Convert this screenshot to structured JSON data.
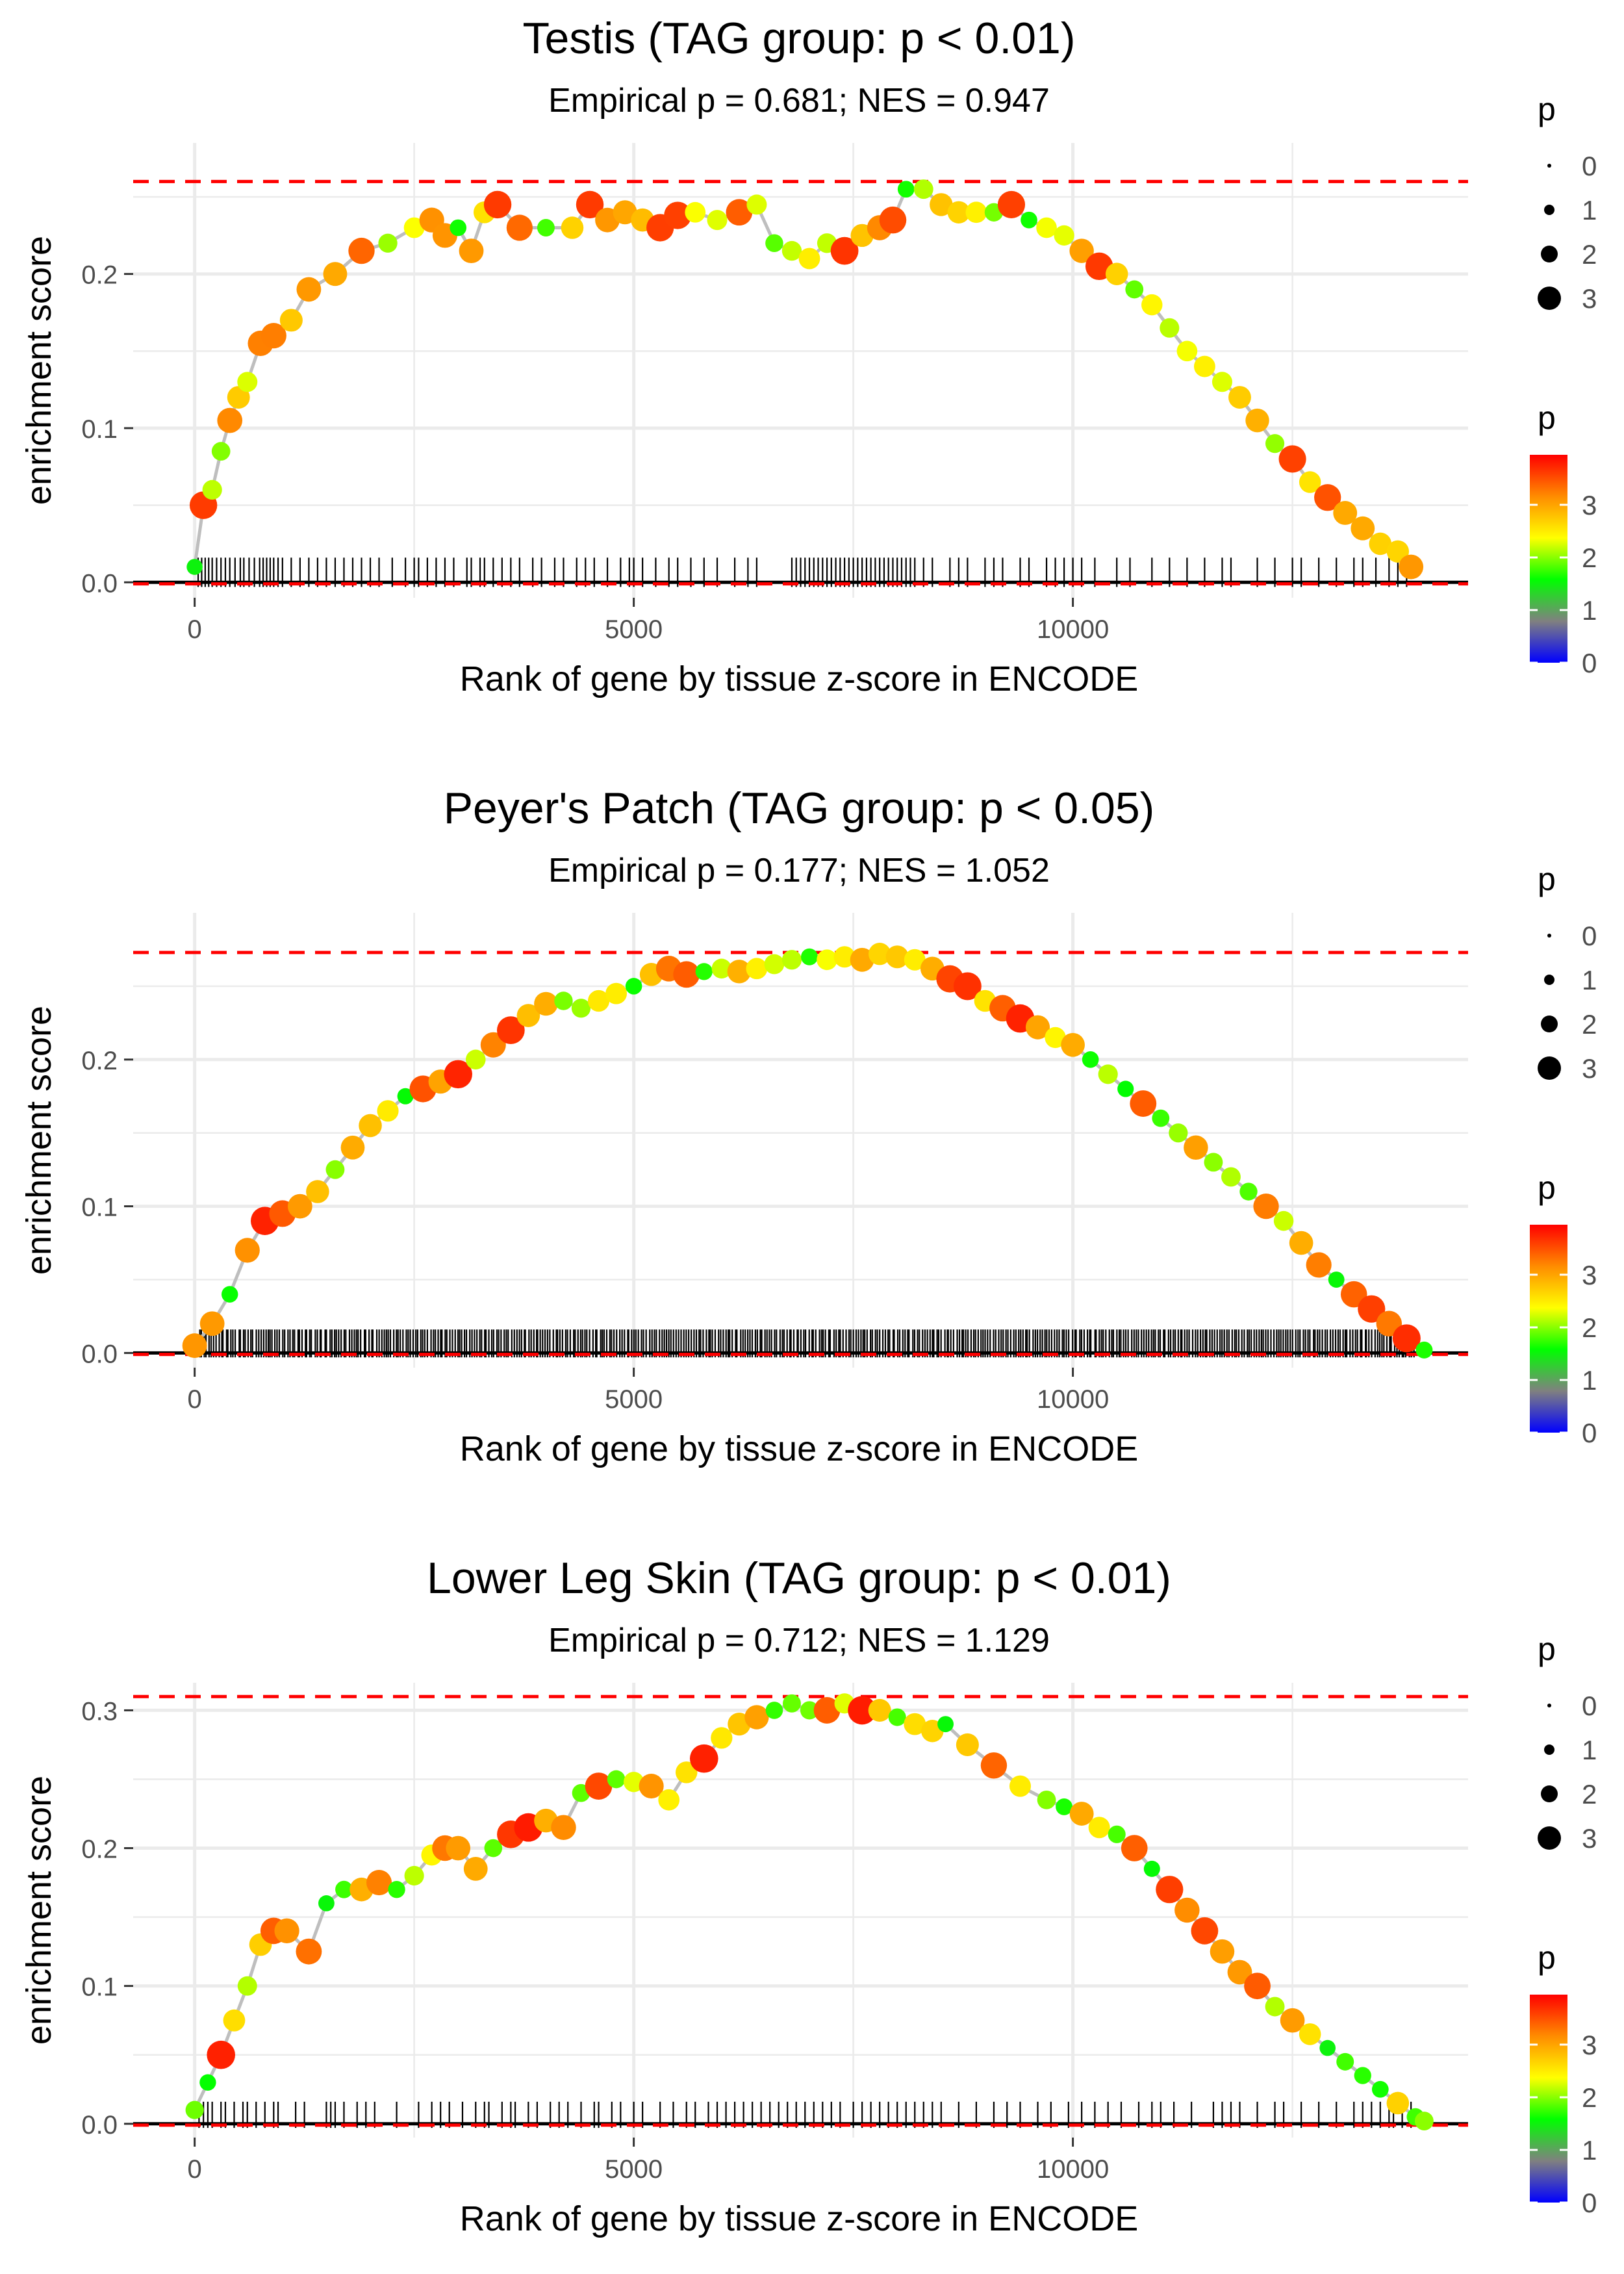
{
  "colors": {
    "threshold": "#ff0000",
    "grid": "#ebebeb",
    "line": "#bebebe",
    "zero_line": "#000000",
    "text": "#000000",
    "tick_text": "#4d4d4d",
    "scale_stops": [
      "#0000ff",
      "#808080",
      "#00ff00",
      "#ffff00",
      "#ff8c00",
      "#ff0000"
    ]
  },
  "chart_data": [
    {
      "type": "line",
      "title": "Testis (TAG group: p < 0.01)",
      "subtitle": "Empirical p = 0.681; NES = 0.947",
      "xlabel": "Rank of gene by tissue z-score in ENCODE",
      "ylabel": "enrichment score",
      "xlim": [
        -700,
        14500
      ],
      "ylim": [
        -0.01,
        0.285
      ],
      "xticks": [
        0,
        5000,
        10000
      ],
      "xtick_labels": [
        "0",
        "5000",
        "10000"
      ],
      "yticks": [
        0.0,
        0.1,
        0.2
      ],
      "ytick_labels": [
        "0.0",
        "0.1",
        "0.2"
      ],
      "threshold_lines": [
        0.26,
        -0.001
      ],
      "x": [
        0,
        100,
        200,
        300,
        400,
        500,
        600,
        750,
        900,
        1100,
        1300,
        1600,
        1900,
        2200,
        2500,
        2700,
        2850,
        3000,
        3150,
        3300,
        3450,
        3700,
        4000,
        4300,
        4500,
        4700,
        4900,
        5100,
        5300,
        5500,
        5700,
        5950,
        6200,
        6400,
        6600,
        6800,
        7000,
        7200,
        7400,
        7600,
        7800,
        7950,
        8100,
        8300,
        8500,
        8700,
        8900,
        9100,
        9300,
        9500,
        9700,
        9900,
        10100,
        10300,
        10500,
        10700,
        10900,
        11100,
        11300,
        11500,
        11700,
        11900,
        12100,
        12300,
        12500,
        12700,
        12900,
        13100,
        13300,
        13500,
        13700,
        13850
      ],
      "y": [
        0.01,
        0.05,
        0.06,
        0.085,
        0.105,
        0.12,
        0.13,
        0.155,
        0.16,
        0.17,
        0.19,
        0.2,
        0.215,
        0.22,
        0.23,
        0.235,
        0.225,
        0.23,
        0.215,
        0.24,
        0.245,
        0.23,
        0.23,
        0.23,
        0.245,
        0.235,
        0.24,
        0.235,
        0.23,
        0.238,
        0.24,
        0.235,
        0.24,
        0.245,
        0.22,
        0.215,
        0.21,
        0.22,
        0.215,
        0.225,
        0.23,
        0.235,
        0.255,
        0.255,
        0.245,
        0.24,
        0.24,
        0.24,
        0.245,
        0.235,
        0.23,
        0.225,
        0.215,
        0.205,
        0.2,
        0.19,
        0.18,
        0.165,
        0.15,
        0.14,
        0.13,
        0.12,
        0.105,
        0.09,
        0.08,
        0.065,
        0.055,
        0.045,
        0.035,
        0.025,
        0.02,
        0.01
      ],
      "rug": [
        40,
        80,
        120,
        160,
        200,
        250,
        300,
        350,
        400,
        460,
        520,
        560,
        620,
        680,
        740,
        780,
        820,
        860,
        900,
        950,
        1000,
        1100,
        1200,
        1300,
        1400,
        1500,
        1600,
        1700,
        1800,
        1900,
        2000,
        2100,
        2250,
        2400,
        2500,
        2550,
        2650,
        2750,
        2850,
        2950,
        3100,
        3150,
        3250,
        3300,
        3400,
        3500,
        3600,
        3700,
        3850,
        3950,
        4100,
        4200,
        4350,
        4450,
        4550,
        4700,
        4850,
        4950,
        5000,
        5100,
        5250,
        5400,
        5500,
        5650,
        5800,
        5950,
        6150,
        6300,
        6400,
        6800,
        6850,
        6900,
        6950,
        7000,
        7050,
        7100,
        7150,
        7200,
        7250,
        7300,
        7350,
        7400,
        7450,
        7500,
        7550,
        7600,
        7650,
        7700,
        7750,
        7800,
        7850,
        7900,
        7950,
        8000,
        8050,
        8100,
        8150,
        8200,
        8300,
        8400,
        8600,
        8700,
        8800,
        9000,
        9100,
        9200,
        9400,
        9500,
        9700,
        9800,
        9900,
        10000,
        10100,
        10250,
        10500,
        10650,
        10900,
        11100,
        11300,
        11500,
        11700,
        11800,
        12100,
        12300,
        12500,
        12600,
        12800,
        13000,
        13200,
        13300,
        13450,
        13600,
        13700,
        13800
      ],
      "size_legend": {
        "title": "p",
        "labels": [
          "0",
          "1",
          "2",
          "3"
        ]
      },
      "color_legend": {
        "title": "p",
        "labels": [
          "3",
          "2",
          "1",
          "0"
        ],
        "values": [
          3,
          2,
          1,
          0
        ],
        "max": 3.95
      }
    },
    {
      "type": "line",
      "title": "Peyer's Patch (TAG group: p < 0.05)",
      "subtitle": "Empirical p = 0.177; NES = 1.052",
      "xlabel": "Rank of gene by tissue z-score in ENCODE",
      "ylabel": "enrichment score",
      "xlim": [
        -700,
        14500
      ],
      "ylim": [
        -0.01,
        0.3
      ],
      "xticks": [
        0,
        5000,
        10000
      ],
      "xtick_labels": [
        "0",
        "5000",
        "10000"
      ],
      "yticks": [
        0.0,
        0.1,
        0.2
      ],
      "ytick_labels": [
        "0.0",
        "0.1",
        "0.2"
      ],
      "threshold_lines": [
        0.273,
        -0.001
      ],
      "x": [
        0,
        200,
        400,
        600,
        800,
        1000,
        1200,
        1400,
        1600,
        1800,
        2000,
        2200,
        2400,
        2600,
        2800,
        3000,
        3200,
        3400,
        3600,
        3800,
        4000,
        4200,
        4400,
        4600,
        4800,
        5000,
        5200,
        5400,
        5600,
        5800,
        6000,
        6200,
        6400,
        6600,
        6800,
        7000,
        7200,
        7400,
        7600,
        7800,
        8000,
        8200,
        8400,
        8600,
        8800,
        9000,
        9200,
        9400,
        9600,
        9800,
        10000,
        10200,
        10400,
        10600,
        10800,
        11000,
        11200,
        11400,
        11600,
        11800,
        12000,
        12200,
        12400,
        12600,
        12800,
        13000,
        13200,
        13400,
        13600,
        13800,
        14000
      ],
      "y": [
        0.005,
        0.02,
        0.04,
        0.07,
        0.09,
        0.095,
        0.1,
        0.11,
        0.125,
        0.14,
        0.155,
        0.165,
        0.175,
        0.18,
        0.185,
        0.19,
        0.2,
        0.21,
        0.22,
        0.23,
        0.238,
        0.24,
        0.235,
        0.24,
        0.245,
        0.25,
        0.258,
        0.262,
        0.258,
        0.26,
        0.262,
        0.26,
        0.262,
        0.265,
        0.268,
        0.27,
        0.268,
        0.27,
        0.268,
        0.272,
        0.27,
        0.268,
        0.262,
        0.255,
        0.25,
        0.24,
        0.235,
        0.228,
        0.222,
        0.215,
        0.21,
        0.2,
        0.19,
        0.18,
        0.17,
        0.16,
        0.15,
        0.14,
        0.13,
        0.12,
        0.11,
        0.1,
        0.09,
        0.075,
        0.06,
        0.05,
        0.04,
        0.03,
        0.02,
        0.01,
        0.002
      ],
      "rug": [],
      "rug_dense": {
        "start": 50,
        "end": 13900,
        "step": 28
      },
      "size_legend": {
        "title": "p",
        "labels": [
          "0",
          "1",
          "2",
          "3"
        ]
      },
      "color_legend": {
        "title": "p",
        "labels": [
          "3",
          "2",
          "1",
          "0"
        ],
        "values": [
          3,
          2,
          1,
          0
        ],
        "max": 3.95
      }
    },
    {
      "type": "line",
      "title": "Lower Leg Skin (TAG group: p < 0.01)",
      "subtitle": "Empirical p = 0.712; NES = 1.129",
      "xlabel": "Rank of gene by tissue z-score in ENCODE",
      "ylabel": "enrichment score",
      "xlim": [
        -700,
        14500
      ],
      "ylim": [
        -0.01,
        0.32
      ],
      "xticks": [
        0,
        5000,
        10000
      ],
      "xtick_labels": [
        "0",
        "5000",
        "10000"
      ],
      "yticks": [
        0.0,
        0.1,
        0.2,
        0.3
      ],
      "ytick_labels": [
        "0.0",
        "0.1",
        "0.2",
        "0.3"
      ],
      "threshold_lines": [
        0.31,
        -0.001
      ],
      "x": [
        0,
        150,
        300,
        450,
        600,
        750,
        900,
        1050,
        1300,
        1500,
        1700,
        1900,
        2100,
        2300,
        2500,
        2700,
        2850,
        3000,
        3200,
        3400,
        3600,
        3800,
        4000,
        4200,
        4400,
        4600,
        4800,
        5000,
        5200,
        5400,
        5600,
        5800,
        6000,
        6200,
        6400,
        6600,
        6800,
        7000,
        7200,
        7400,
        7600,
        7800,
        8000,
        8200,
        8400,
        8550,
        8800,
        9100,
        9400,
        9700,
        9900,
        10100,
        10300,
        10500,
        10700,
        10900,
        11100,
        11300,
        11500,
        11700,
        11900,
        12100,
        12300,
        12500,
        12700,
        12900,
        13100,
        13300,
        13500,
        13700,
        13900,
        14000
      ],
      "y": [
        0.01,
        0.03,
        0.05,
        0.075,
        0.1,
        0.13,
        0.14,
        0.14,
        0.125,
        0.16,
        0.17,
        0.17,
        0.175,
        0.17,
        0.18,
        0.195,
        0.2,
        0.2,
        0.185,
        0.2,
        0.21,
        0.215,
        0.22,
        0.215,
        0.24,
        0.245,
        0.25,
        0.248,
        0.245,
        0.235,
        0.255,
        0.265,
        0.28,
        0.29,
        0.295,
        0.3,
        0.305,
        0.3,
        0.3,
        0.305,
        0.3,
        0.3,
        0.295,
        0.29,
        0.285,
        0.29,
        0.275,
        0.26,
        0.245,
        0.235,
        0.23,
        0.225,
        0.215,
        0.21,
        0.2,
        0.185,
        0.17,
        0.155,
        0.14,
        0.125,
        0.11,
        0.1,
        0.085,
        0.075,
        0.065,
        0.055,
        0.045,
        0.035,
        0.025,
        0.015,
        0.005,
        0.002
      ],
      "rug": [
        50,
        100,
        150,
        200,
        300,
        350,
        450,
        550,
        600,
        700,
        800,
        900,
        950,
        1150,
        1250,
        1500,
        1550,
        1600,
        1700,
        1850,
        1950,
        2050,
        2300,
        2550,
        2700,
        2800,
        2900,
        3050,
        3200,
        3300,
        3350,
        3500,
        3600,
        3650,
        3800,
        3900,
        4050,
        4150,
        4250,
        4400,
        4550,
        4600,
        4750,
        4850,
        5000,
        5100,
        5300,
        5450,
        5600,
        5700,
        5850,
        5950,
        6050,
        6150,
        6250,
        6350,
        6450,
        6550,
        6650,
        6750,
        6850,
        6950,
        7050,
        7150,
        7250,
        7350,
        7500,
        7600,
        7700,
        7800,
        7900,
        8000,
        8100,
        8200,
        8300,
        8400,
        8500,
        8700,
        8900,
        9100,
        9250,
        9400,
        9600,
        9750,
        9950,
        10100,
        10250,
        10400,
        10550,
        10750,
        10900,
        11000,
        11150,
        11350,
        11600,
        11700,
        11800,
        11900,
        12100,
        12300,
        12400,
        12600,
        12800,
        13000,
        13200,
        13300,
        13400,
        13500,
        13600,
        13650,
        13750,
        13850
      ],
      "size_legend": {
        "title": "p",
        "labels": [
          "0",
          "1",
          "2",
          "3"
        ]
      },
      "color_legend": {
        "title": "p",
        "labels": [
          "3",
          "2",
          "1",
          "0"
        ],
        "values": [
          3,
          2,
          1,
          0
        ],
        "max": 3.95
      }
    }
  ]
}
